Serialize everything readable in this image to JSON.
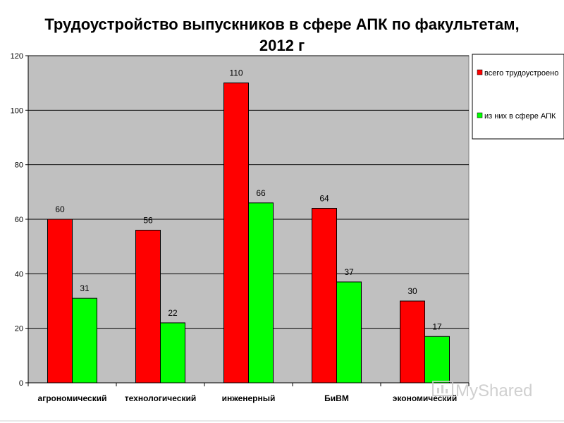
{
  "chart_data": {
    "type": "bar",
    "title_line1": "Трудоустройство выпускников в сфере АПК по факультетам,",
    "title_line2": "2012 г",
    "categories": [
      "агрономический",
      "технологический",
      "инженерный",
      "БиВМ",
      "экономический"
    ],
    "series": [
      {
        "name": "всего трудоустроено",
        "color": "#ff0000",
        "values": [
          60,
          56,
          110,
          64,
          30
        ]
      },
      {
        "name": "из них в сфере АПК",
        "color": "#00ff00",
        "values": [
          31,
          22,
          66,
          37,
          17
        ]
      }
    ],
    "ylim": [
      0,
      120
    ],
    "yticks": [
      0,
      20,
      40,
      60,
      80,
      100,
      120
    ],
    "grid": true,
    "legend_position": "top-right",
    "plot_background": "#c0c0c0"
  },
  "watermark": {
    "text": "MyShared"
  }
}
